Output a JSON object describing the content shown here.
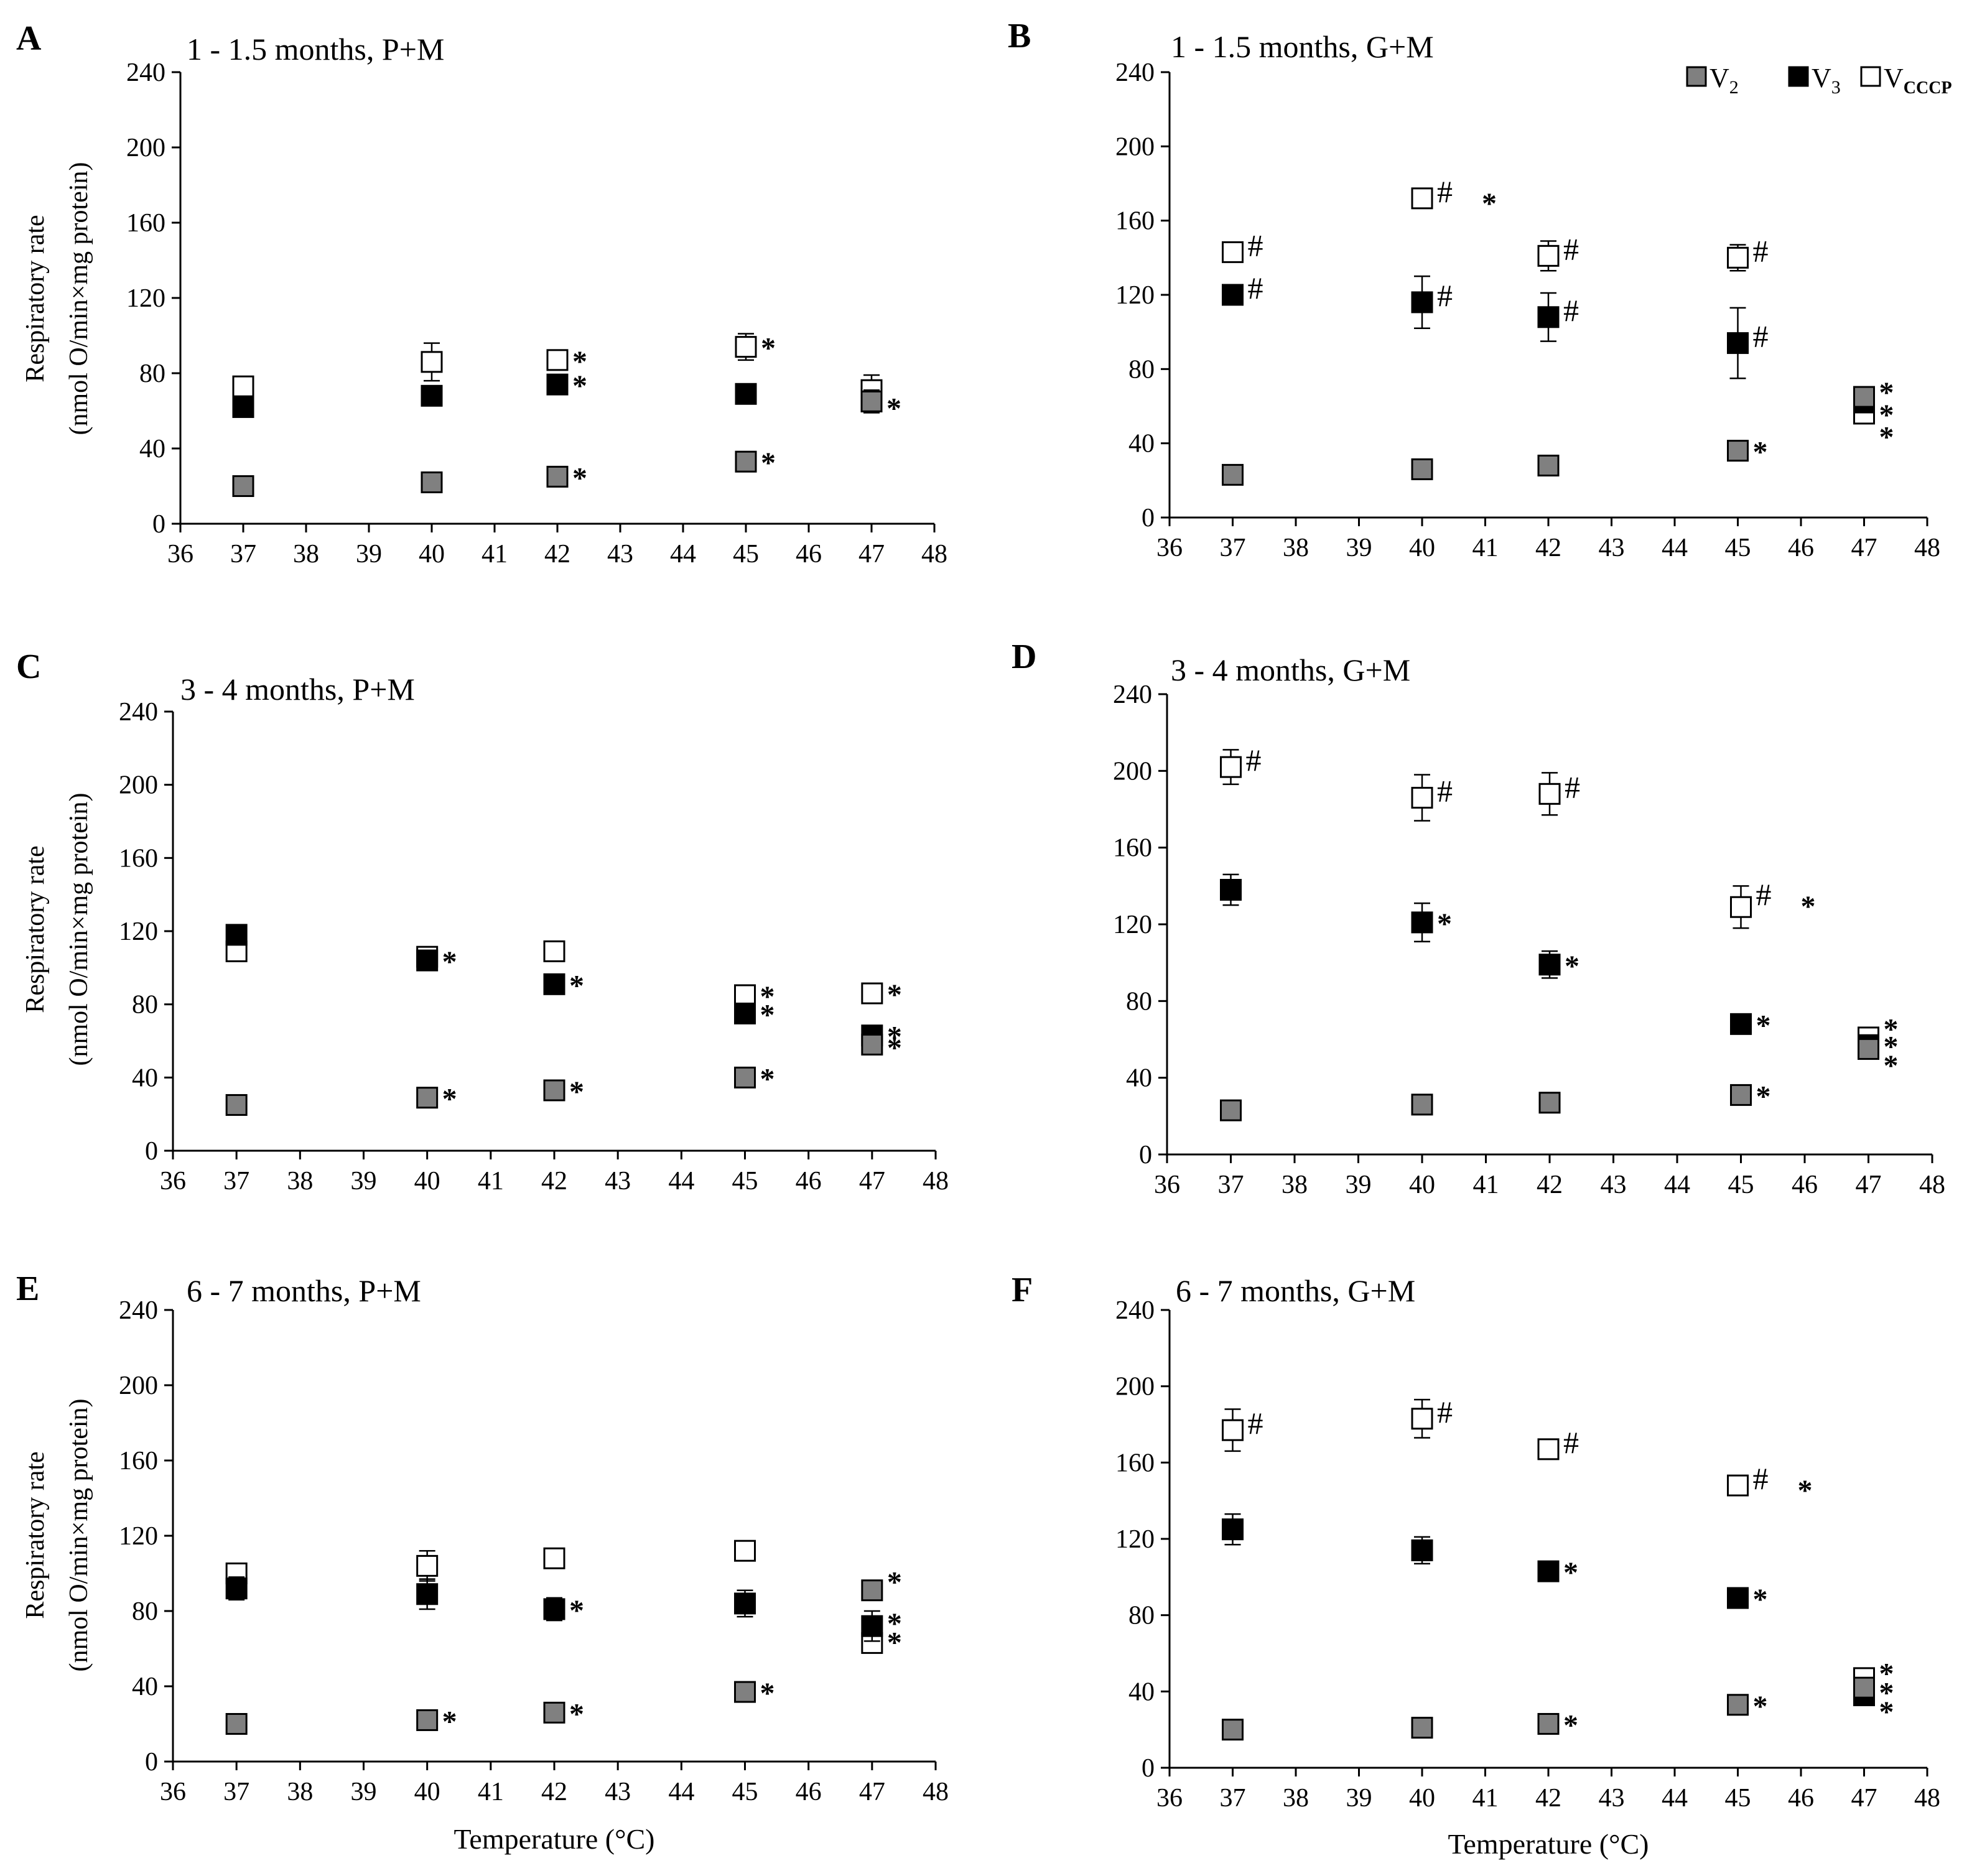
{
  "colors": {
    "v2": "#808080",
    "v3": "#000000",
    "vcccp": "#ffffff",
    "axis": "#000000"
  },
  "legend": [
    {
      "key": "v2",
      "base": "V",
      "sub": "2"
    },
    {
      "key": "v3",
      "base": "V",
      "sub": "3"
    },
    {
      "key": "vcccp",
      "base": "V",
      "sub": "CCCP"
    }
  ],
  "chart_data": [
    {
      "type": "scatter",
      "id": "A",
      "letter": "A",
      "title": "1 - 1.5 months, P+M",
      "ylabel_line1": "Respiratory rate",
      "ylabel_line2": "(nmol O/min×mg protein)",
      "xlabel": "",
      "xlim": [
        36,
        48
      ],
      "ylim": [
        0,
        240
      ],
      "xticks": [
        36,
        37,
        38,
        39,
        40,
        41,
        42,
        43,
        44,
        45,
        46,
        47,
        48
      ],
      "yticks": [
        0,
        40,
        80,
        120,
        160,
        200,
        240
      ],
      "x": [
        37,
        40,
        42,
        45,
        47
      ],
      "series": [
        {
          "name": "V2",
          "key": "v2",
          "values": [
            20,
            22,
            25,
            33,
            65
          ],
          "errors": [
            0,
            0,
            0,
            0,
            0
          ]
        },
        {
          "name": "V3",
          "key": "v3",
          "values": [
            62,
            68,
            74,
            69,
            65
          ],
          "errors": [
            0,
            0,
            0,
            0,
            6
          ]
        },
        {
          "name": "VCCCP",
          "key": "vcccp",
          "values": [
            73,
            86,
            87,
            94,
            71
          ],
          "errors": [
            0,
            10,
            4,
            7,
            8
          ]
        }
      ],
      "annotations": [
        {
          "x": 42,
          "y": 87,
          "text": "*"
        },
        {
          "x": 42,
          "y": 74,
          "text": "*"
        },
        {
          "x": 42,
          "y": 25,
          "text": "*"
        },
        {
          "x": 45,
          "y": 94,
          "text": "*"
        },
        {
          "x": 45,
          "y": 33,
          "text": "*"
        },
        {
          "x": 47,
          "y": 62,
          "text": "*"
        }
      ]
    },
    {
      "type": "scatter",
      "id": "B",
      "letter": "B",
      "title": "1 - 1.5 months, G+M",
      "ylabel_line1": "",
      "ylabel_line2": "",
      "xlabel": "",
      "xlim": [
        36,
        48
      ],
      "ylim": [
        0,
        240
      ],
      "xticks": [
        36,
        37,
        38,
        39,
        40,
        41,
        42,
        43,
        44,
        45,
        46,
        47,
        48
      ],
      "yticks": [
        0,
        40,
        80,
        120,
        160,
        200,
        240
      ],
      "x": [
        37,
        40,
        42,
        45,
        47
      ],
      "series": [
        {
          "name": "V2",
          "key": "v2",
          "values": [
            23,
            26,
            28,
            36,
            65
          ],
          "errors": [
            0,
            0,
            0,
            0,
            0
          ]
        },
        {
          "name": "V3",
          "key": "v3",
          "values": [
            120,
            116,
            108,
            94,
            62
          ],
          "errors": [
            5,
            14,
            13,
            19,
            0
          ]
        },
        {
          "name": "VCCCP",
          "key": "vcccp",
          "values": [
            143,
            172,
            141,
            140,
            56
          ],
          "errors": [
            0,
            0,
            8,
            7,
            0
          ]
        }
      ],
      "annotations": [
        {
          "x": 37,
          "y": 143,
          "text": "#"
        },
        {
          "x": 37,
          "y": 120,
          "text": "#"
        },
        {
          "x": 40,
          "y": 172,
          "text": "#"
        },
        {
          "x": 40,
          "y": 116,
          "text": "#"
        },
        {
          "x": 42,
          "y": 141,
          "text": "#"
        },
        {
          "x": 42,
          "y": 108,
          "text": "#"
        },
        {
          "x": 45,
          "y": 140,
          "text": "#"
        },
        {
          "x": 45,
          "y": 94,
          "text": "#"
        },
        {
          "x": 45,
          "y": 36,
          "text": "*"
        },
        {
          "x": 47,
          "y": 68,
          "text": "*"
        },
        {
          "x": 47,
          "y": 56,
          "text": "*"
        },
        {
          "x": 47,
          "y": 44,
          "text": "*"
        }
      ],
      "extra_annotations": [
        {
          "x": 40,
          "y": 172,
          "text": "*"
        }
      ]
    },
    {
      "type": "scatter",
      "id": "C",
      "letter": "C",
      "title": "3 - 4 months, P+M",
      "ylabel_line1": "Respiratory rate",
      "ylabel_line2": "(nmol O/min×mg protein)",
      "xlabel": "",
      "xlim": [
        36,
        48
      ],
      "ylim": [
        0,
        240
      ],
      "xticks": [
        36,
        37,
        38,
        39,
        40,
        41,
        42,
        43,
        44,
        45,
        46,
        47,
        48
      ],
      "yticks": [
        0,
        40,
        80,
        120,
        160,
        200,
        240
      ],
      "x": [
        37,
        40,
        42,
        45,
        47
      ],
      "series": [
        {
          "name": "V2",
          "key": "v2",
          "values": [
            25,
            29,
            33,
            40,
            58
          ],
          "errors": [
            0,
            0,
            0,
            0,
            0
          ]
        },
        {
          "name": "V3",
          "key": "v3",
          "values": [
            118,
            104,
            91,
            75,
            63
          ],
          "errors": [
            5,
            0,
            0,
            0,
            0
          ]
        },
        {
          "name": "VCCCP",
          "key": "vcccp",
          "values": [
            109,
            106,
            109,
            85,
            86
          ],
          "errors": [
            0,
            5,
            0,
            0,
            0
          ]
        }
      ],
      "annotations": [
        {
          "x": 40,
          "y": 104,
          "text": "*"
        },
        {
          "x": 40,
          "y": 29,
          "text": "*"
        },
        {
          "x": 42,
          "y": 91,
          "text": "*"
        },
        {
          "x": 42,
          "y": 33,
          "text": "*"
        },
        {
          "x": 45,
          "y": 85,
          "text": "*"
        },
        {
          "x": 45,
          "y": 75,
          "text": "*"
        },
        {
          "x": 45,
          "y": 40,
          "text": "*"
        },
        {
          "x": 47,
          "y": 86,
          "text": "*"
        },
        {
          "x": 47,
          "y": 63,
          "text": "*"
        },
        {
          "x": 47,
          "y": 57,
          "text": "*"
        }
      ]
    },
    {
      "type": "scatter",
      "id": "D",
      "letter": "D",
      "title": "3 - 4 months, G+M",
      "ylabel_line1": "",
      "ylabel_line2": "",
      "xlabel": "",
      "xlim": [
        36,
        48
      ],
      "ylim": [
        0,
        240
      ],
      "xticks": [
        36,
        37,
        38,
        39,
        40,
        41,
        42,
        43,
        44,
        45,
        46,
        47,
        48
      ],
      "yticks": [
        0,
        40,
        80,
        120,
        160,
        200,
        240
      ],
      "x": [
        37,
        40,
        42,
        45,
        47
      ],
      "series": [
        {
          "name": "V2",
          "key": "v2",
          "values": [
            23,
            26,
            27,
            31,
            55
          ],
          "errors": [
            0,
            0,
            0,
            0,
            0
          ]
        },
        {
          "name": "V3",
          "key": "v3",
          "values": [
            138,
            121,
            99,
            68,
            57
          ],
          "errors": [
            8,
            10,
            7,
            0,
            0
          ]
        },
        {
          "name": "VCCCP",
          "key": "vcccp",
          "values": [
            202,
            186,
            188,
            129,
            61
          ],
          "errors": [
            9,
            12,
            11,
            11,
            0
          ]
        }
      ],
      "annotations": [
        {
          "x": 37,
          "y": 202,
          "text": "#"
        },
        {
          "x": 40,
          "y": 186,
          "text": "#"
        },
        {
          "x": 42,
          "y": 188,
          "text": "#"
        },
        {
          "x": 45,
          "y": 132,
          "text": "#"
        },
        {
          "x": 40,
          "y": 121,
          "text": "*"
        },
        {
          "x": 42,
          "y": 99,
          "text": "*"
        },
        {
          "x": 45,
          "y": 68,
          "text": "*"
        },
        {
          "x": 45,
          "y": 31,
          "text": "*"
        },
        {
          "x": 47,
          "y": 66,
          "text": "*"
        },
        {
          "x": 47,
          "y": 57,
          "text": "*"
        },
        {
          "x": 47,
          "y": 47,
          "text": "*"
        }
      ],
      "extra_annotations": [
        {
          "x": 45,
          "y": 132,
          "text": "*"
        }
      ]
    },
    {
      "type": "scatter",
      "id": "E",
      "letter": "E",
      "title": "6 - 7 months, P+M",
      "ylabel_line1": "Respiratory rate",
      "ylabel_line2": "(nmol O/min×mg protein)",
      "xlabel": "Temperature (°C)",
      "xlim": [
        36,
        48
      ],
      "ylim": [
        0,
        240
      ],
      "xticks": [
        36,
        37,
        38,
        39,
        40,
        41,
        42,
        43,
        44,
        45,
        46,
        47,
        48
      ],
      "yticks": [
        0,
        40,
        80,
        120,
        160,
        200,
        240
      ],
      "x": [
        37,
        40,
        42,
        45,
        47
      ],
      "series": [
        {
          "name": "V2",
          "key": "v2",
          "values": [
            20,
            22,
            26,
            37,
            91
          ],
          "errors": [
            0,
            0,
            0,
            0,
            0
          ]
        },
        {
          "name": "V3",
          "key": "v3",
          "values": [
            92,
            89,
            81,
            84,
            72
          ],
          "errors": [
            6,
            8,
            6,
            7,
            8
          ]
        },
        {
          "name": "VCCCP",
          "key": "vcccp",
          "values": [
            100,
            104,
            108,
            112,
            63
          ],
          "errors": [
            0,
            8,
            0,
            0,
            0
          ]
        }
      ],
      "annotations": [
        {
          "x": 40,
          "y": 22,
          "text": "*"
        },
        {
          "x": 42,
          "y": 81,
          "text": "*"
        },
        {
          "x": 42,
          "y": 26,
          "text": "*"
        },
        {
          "x": 45,
          "y": 37,
          "text": "*"
        },
        {
          "x": 47,
          "y": 96,
          "text": "*"
        },
        {
          "x": 47,
          "y": 74,
          "text": "*"
        },
        {
          "x": 47,
          "y": 64,
          "text": "*"
        }
      ]
    },
    {
      "type": "scatter",
      "id": "F",
      "letter": "F",
      "title": "6 - 7 months, G+M",
      "ylabel_line1": "",
      "ylabel_line2": "",
      "xlabel": "Temperature (°C)",
      "xlim": [
        36,
        48
      ],
      "ylim": [
        0,
        240
      ],
      "xticks": [
        36,
        37,
        38,
        39,
        40,
        41,
        42,
        43,
        44,
        45,
        46,
        47,
        48
      ],
      "yticks": [
        0,
        40,
        80,
        120,
        160,
        200,
        240
      ],
      "x": [
        37,
        40,
        42,
        45,
        47
      ],
      "series": [
        {
          "name": "V2",
          "key": "v2",
          "values": [
            20,
            21,
            23,
            33,
            42
          ],
          "errors": [
            0,
            0,
            0,
            0,
            0
          ]
        },
        {
          "name": "V3",
          "key": "v3",
          "values": [
            125,
            114,
            103,
            89,
            38
          ],
          "errors": [
            8,
            7,
            0,
            0,
            0
          ]
        },
        {
          "name": "VCCCP",
          "key": "vcccp",
          "values": [
            177,
            183,
            167,
            148,
            47
          ],
          "errors": [
            11,
            10,
            0,
            0,
            0
          ]
        }
      ],
      "annotations": [
        {
          "x": 37,
          "y": 177,
          "text": "#"
        },
        {
          "x": 40,
          "y": 183,
          "text": "#"
        },
        {
          "x": 42,
          "y": 167,
          "text": "#"
        },
        {
          "x": 45,
          "y": 148,
          "text": "#"
        },
        {
          "x": 42,
          "y": 103,
          "text": "*"
        },
        {
          "x": 42,
          "y": 23,
          "text": "*"
        },
        {
          "x": 45,
          "y": 89,
          "text": "*"
        },
        {
          "x": 45,
          "y": 33,
          "text": "*"
        },
        {
          "x": 47,
          "y": 50,
          "text": "*"
        },
        {
          "x": 47,
          "y": 40,
          "text": "*"
        },
        {
          "x": 47,
          "y": 30,
          "text": "*"
        }
      ],
      "extra_annotations": [
        {
          "x": 45,
          "y": 148,
          "text": "*"
        }
      ]
    }
  ]
}
